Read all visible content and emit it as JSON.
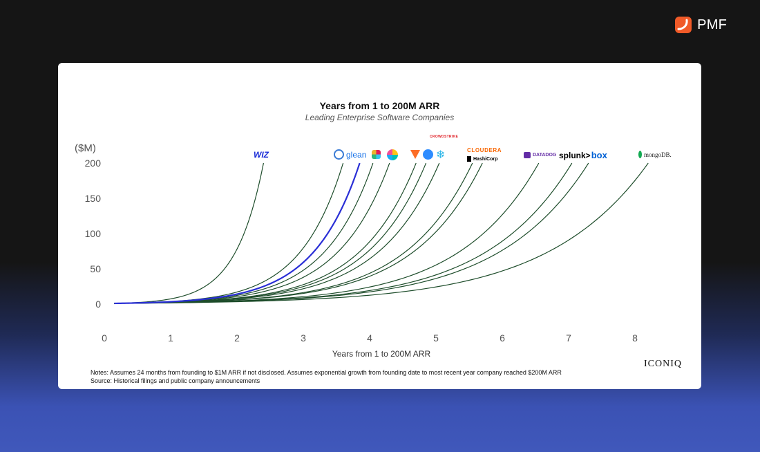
{
  "brand": {
    "name": "PMF",
    "icon": "pmf-logo-icon",
    "color": "#f05a28"
  },
  "chart_data": {
    "type": "line",
    "title": "Years from 1 to 200M ARR",
    "subtitle": "Leading Enterprise Software Companies",
    "xlabel": "Years from 1 to 200M ARR",
    "ylabel": "($M)",
    "xlim": [
      0,
      8.3
    ],
    "ylim": [
      0,
      200
    ],
    "xticks": [
      "0",
      "1",
      "2",
      "3",
      "4",
      "5",
      "6",
      "7",
      "8"
    ],
    "yticks": [
      "200",
      "150",
      "100",
      "50",
      "0"
    ],
    "grid": false,
    "start_x": 0.15,
    "start_value": 1,
    "end_value": 200,
    "line_color": "#1e4d2b",
    "highlight_color": "#2a2fd6",
    "series_end_x": [
      2.4,
      3.6,
      3.85,
      4.05,
      4.3,
      4.7,
      4.85,
      5.05,
      5.55,
      5.7,
      6.55,
      7.05,
      7.3,
      8.2
    ],
    "highlight_index": 2
  },
  "logos": {
    "wiz": "WIZ",
    "glean": "glean",
    "crowdstrike": "CROWDSTRIKE",
    "cloudera": "CLOUDERA",
    "hashicorp": "HashiCorp",
    "datadog": "DATADOG",
    "splunk": "splunk>",
    "box": "box",
    "mongodb": "mongoDB."
  },
  "notes": {
    "line1": "Notes: Assumes 24 months from founding to $1M ARR if not disclosed. Assumes exponential growth from founding date to most recent year company reached $200M ARR",
    "line2": "Source: Historical filings and public company announcements"
  },
  "source_brand": "ICONIQ"
}
